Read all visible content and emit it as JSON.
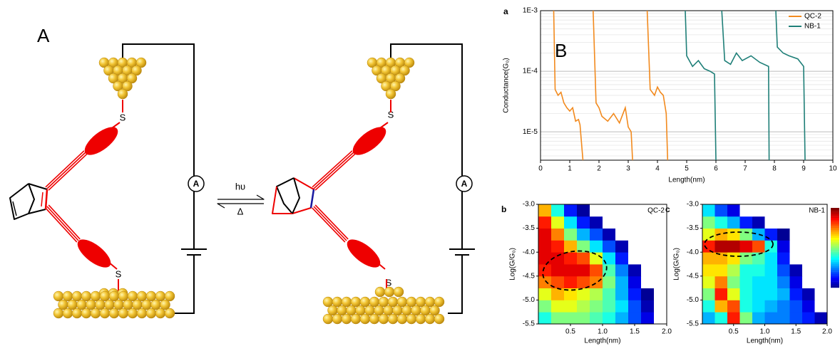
{
  "diagram": {
    "label": "A",
    "left": {
      "sulfur_top": "S",
      "sulfur_bottom": "S",
      "meter": "A"
    },
    "right": {
      "sulfur_top": "S",
      "sulfur_bottom": "S",
      "meter": "A"
    },
    "forward": "hυ",
    "reverse": "Δ"
  },
  "chart_data": [
    {
      "type": "line",
      "label": "a",
      "annotation": "B",
      "xlabel": "Length(nm)",
      "ylabel": "Conductance(G₀)",
      "xlim": [
        0,
        10
      ],
      "ylim": [
        3.4e-06,
        0.001
      ],
      "log_y": true,
      "xticks": [
        0,
        1,
        2,
        3,
        4,
        5,
        6,
        7,
        8,
        9,
        10
      ],
      "yticks": [
        {
          "value": 0.001,
          "label": "1E-3"
        },
        {
          "value": 0.0001,
          "label": "1E-4"
        },
        {
          "value": 1e-05,
          "label": "1E-5"
        }
      ],
      "grid": true,
      "legend": "top-right",
      "series": [
        {
          "name": "QC-2",
          "color": "#f28a1e",
          "x": [
            0.45,
            0.5,
            0.6,
            0.7,
            0.8,
            0.9,
            1.0,
            1.1,
            1.2,
            1.3,
            1.35,
            1.45,
            null,
            1.8,
            1.9,
            2.0,
            2.1,
            2.3,
            2.5,
            2.7,
            2.9,
            3.0,
            3.1,
            3.15,
            null,
            3.65,
            3.75,
            3.9,
            4.0,
            4.1,
            4.2,
            4.3,
            4.35
          ],
          "values": [
            0.001,
            5e-05,
            4e-05,
            4.5e-05,
            3e-05,
            2.5e-05,
            2.2e-05,
            2.5e-05,
            1.5e-05,
            1.6e-05,
            1.3e-05,
            3.4e-06,
            null,
            0.001,
            3e-05,
            2.5e-05,
            1.8e-05,
            1.5e-05,
            2e-05,
            1.4e-05,
            2.5e-05,
            1.2e-05,
            1e-05,
            3.4e-06,
            null,
            0.001,
            5e-05,
            4e-05,
            5.5e-05,
            4.5e-05,
            4e-05,
            2e-05,
            3.4e-06
          ]
        },
        {
          "name": "NB-1",
          "color": "#1f7f78",
          "x": [
            4.95,
            5.0,
            5.2,
            5.4,
            5.6,
            5.8,
            5.95,
            6.0,
            null,
            6.2,
            6.3,
            6.5,
            6.7,
            6.9,
            7.2,
            7.5,
            7.8,
            7.82,
            null,
            8.05,
            8.1,
            8.3,
            8.5,
            8.8,
            9.0,
            9.05
          ],
          "values": [
            0.001,
            0.00018,
            0.00012,
            0.00015,
            0.00011,
            0.0001,
            9e-05,
            3.4e-06,
            null,
            0.001,
            0.00015,
            0.00013,
            0.0002,
            0.00015,
            0.00018,
            0.00014,
            0.00012,
            3.4e-06,
            null,
            0.001,
            0.00025,
            0.0002,
            0.00018,
            0.00016,
            0.00012,
            3.4e-06
          ]
        }
      ]
    },
    {
      "type": "heatmap",
      "label": "b",
      "name": "QC-2",
      "xlabel": "Length(nm)",
      "ylabel": "Log(G/G₀)",
      "xlim": [
        0,
        2
      ],
      "ylim": [
        -5.5,
        -3
      ],
      "colormap": "jet",
      "xticks": [
        0.5,
        {
          "value": 1,
          "label": "1.0"
        },
        1.5,
        {
          "value": 2,
          "label": "2.0"
        }
      ],
      "yticks": [
        {
          "value": -3,
          "label": "-3.0"
        },
        -3.5,
        {
          "value": -4,
          "label": "-4.0"
        },
        -4.5,
        {
          "value": -5,
          "label": "-5.0"
        },
        -5.5
      ],
      "xbins": [
        0,
        0.2,
        0.4,
        0.6,
        0.8,
        1.0,
        1.2,
        1.4,
        1.6,
        1.8,
        2.0
      ],
      "ybins": [
        -5.5,
        -5.25,
        -5.0,
        -4.75,
        -4.5,
        -4.25,
        -4.0,
        -3.75,
        -3.5,
        -3.25,
        -3.0
      ],
      "values": [
        [
          0.4,
          0.5,
          0.5,
          0.5,
          0.45,
          0.4,
          0.3,
          0.2,
          0.1,
          0
        ],
        [
          0.5,
          0.6,
          0.6,
          0.55,
          0.5,
          0.45,
          0.35,
          0.2,
          0.05,
          0
        ],
        [
          0.6,
          0.7,
          0.65,
          0.6,
          0.55,
          0.45,
          0.3,
          0.15,
          0.02,
          0
        ],
        [
          0.75,
          0.8,
          0.85,
          0.8,
          0.75,
          0.5,
          0.3,
          0.1,
          0,
          0
        ],
        [
          0.85,
          0.9,
          0.9,
          0.9,
          0.8,
          0.45,
          0.25,
          0.05,
          0,
          0
        ],
        [
          0.9,
          0.9,
          0.85,
          0.8,
          0.6,
          0.35,
          0.15,
          0,
          0,
          0
        ],
        [
          0.9,
          0.85,
          0.7,
          0.5,
          0.35,
          0.2,
          0.05,
          0,
          0,
          0
        ],
        [
          0.9,
          0.75,
          0.5,
          0.3,
          0.2,
          0.05,
          0,
          0,
          0,
          0
        ],
        [
          0.85,
          0.6,
          0.35,
          0.15,
          0.05,
          0,
          0,
          0,
          0,
          0
        ],
        [
          0.7,
          0.4,
          0.15,
          0.03,
          0,
          0,
          0,
          0,
          0,
          0
        ]
      ]
    },
    {
      "type": "heatmap",
      "label": "c",
      "name": "NB-1",
      "xlabel": "Length(nm)",
      "ylabel": "Log(G/G₀)",
      "xlim": [
        0,
        2
      ],
      "ylim": [
        -5.5,
        -3
      ],
      "colormap": "jet",
      "colorbar": true,
      "xticks": [
        0.5,
        {
          "value": 1,
          "label": "1.0"
        },
        1.5,
        {
          "value": 2,
          "label": "2.0"
        }
      ],
      "yticks": [
        {
          "value": -3,
          "label": "-3.0"
        },
        -3.5,
        {
          "value": -4,
          "label": "-4.0"
        },
        -4.5,
        {
          "value": -5,
          "label": "-5.0"
        },
        -5.5
      ],
      "xbins": [
        0,
        0.2,
        0.4,
        0.6,
        0.8,
        1.0,
        1.2,
        1.4,
        1.6,
        1.8,
        2.0
      ],
      "ybins": [
        -5.5,
        -5.25,
        -5.0,
        -4.75,
        -4.5,
        -4.25,
        -4.0,
        -3.75,
        -3.5,
        -3.25,
        -3.0
      ],
      "values": [
        [
          0.3,
          0.4,
          0.85,
          0.5,
          0.3,
          0.25,
          0.25,
          0.2,
          0.15,
          0.05
        ],
        [
          0.4,
          0.7,
          0.8,
          0.4,
          0.35,
          0.3,
          0.25,
          0.2,
          0.1,
          0
        ],
        [
          0.5,
          0.85,
          0.6,
          0.4,
          0.35,
          0.35,
          0.3,
          0.15,
          0.05,
          0
        ],
        [
          0.6,
          0.75,
          0.5,
          0.4,
          0.35,
          0.35,
          0.25,
          0.1,
          0,
          0
        ],
        [
          0.65,
          0.65,
          0.55,
          0.4,
          0.4,
          0.35,
          0.2,
          0.05,
          0,
          0
        ],
        [
          0.7,
          0.7,
          0.65,
          0.5,
          0.45,
          0.35,
          0.15,
          0,
          0,
          0
        ],
        [
          0.85,
          0.95,
          0.95,
          0.9,
          0.8,
          0.4,
          0.1,
          0,
          0,
          0
        ],
        [
          0.6,
          0.7,
          0.65,
          0.5,
          0.3,
          0.15,
          0.02,
          0,
          0,
          0
        ],
        [
          0.5,
          0.4,
          0.3,
          0.15,
          0.05,
          0,
          0,
          0,
          0,
          0
        ],
        [
          0.35,
          0.2,
          0.1,
          0,
          0,
          0,
          0,
          0,
          0,
          0
        ]
      ]
    }
  ]
}
